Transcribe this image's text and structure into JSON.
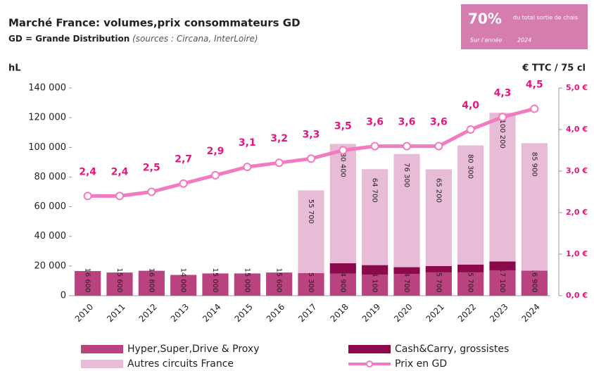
{
  "chart_data": {
    "type": "bar",
    "title": "Marché France: volumes,prix consommateurs GD",
    "subtitle": "GD = Grande Distribution",
    "source": "(sources : Circana, InterLoire)",
    "badge": {
      "value": "70%",
      "text": "du total sortie de chais",
      "period": "Sur l'année",
      "year": "2024"
    },
    "y_label": "hL",
    "y2_label": "€ TTC / 75 cl",
    "categories": [
      "2010",
      "2011",
      "2012",
      "2013",
      "2014",
      "2015",
      "2016",
      "2017",
      "2018",
      "2019",
      "2020",
      "2021",
      "2022",
      "2023",
      "2024"
    ],
    "series": [
      {
        "name": "Hyper,Super,Drive & Proxy",
        "color": "#b8437f",
        "values": [
          16600,
          15600,
          16800,
          14000,
          15000,
          15000,
          15600,
          15300,
          14900,
          14100,
          14700,
          15700,
          15700,
          17100,
          16900
        ],
        "value_labels": [
          "16 600",
          "15 600",
          "16 800",
          "14 000",
          "15 000",
          "15 000",
          "15 600",
          "15 300",
          "14 900",
          "14 100",
          "14 700",
          "15 700",
          "15 700",
          "17 100",
          "16 900"
        ]
      },
      {
        "name": "Cash&Carry, grossistes",
        "color": "#8c0a4b",
        "values": [
          0,
          0,
          0,
          0,
          0,
          0,
          0,
          0,
          7000,
          6500,
          4500,
          4300,
          5300,
          6000,
          0
        ]
      },
      {
        "name": "Autres circuits France",
        "color": "#e8bcd6",
        "values": [
          0,
          0,
          0,
          0,
          0,
          0,
          0,
          55700,
          80400,
          64700,
          76300,
          65200,
          80300,
          100200,
          85900
        ],
        "value_labels": [
          null,
          null,
          null,
          null,
          null,
          null,
          null,
          "55 700",
          "80 400",
          "64 700",
          "76 300",
          "65 200",
          "80 300",
          "100 200",
          "85 900"
        ]
      },
      {
        "name": "Prix en GD",
        "color": "#f27ac0",
        "type": "line",
        "axis": "y2",
        "values": [
          2.4,
          2.4,
          2.5,
          2.7,
          2.9,
          3.1,
          3.2,
          3.3,
          3.5,
          3.6,
          3.6,
          3.6,
          4.0,
          4.3,
          4.5
        ],
        "value_labels": [
          "2,4",
          "2,4",
          "2,5",
          "2,7",
          "2,9",
          "3,1",
          "3,2",
          "3,3",
          "3,5",
          "3,6",
          "3,6",
          "3,6",
          "4,0",
          "4,3",
          "4,5"
        ]
      }
    ],
    "ylim": [
      0,
      140000
    ],
    "yticks": [
      0,
      {
        "value": 20000,
        "label": "20 000"
      },
      {
        "value": 40000,
        "label": "40 000"
      },
      {
        "value": 60000,
        "label": "60 000"
      },
      {
        "value": 80000,
        "label": "80 000"
      },
      {
        "value": 100000,
        "label": "100 000"
      },
      {
        "value": 120000,
        "label": "120 000"
      },
      {
        "value": 140000,
        "label": "140 000"
      }
    ],
    "y2lim": [
      0,
      5
    ],
    "y2ticks": [
      {
        "value": 0,
        "label": "0,0 €"
      },
      {
        "value": 1,
        "label": "1,0 €"
      },
      {
        "value": 2,
        "label": "2,0 €"
      },
      {
        "value": 3,
        "label": "3,0 €"
      },
      {
        "value": 4,
        "label": "4,0 €"
      },
      {
        "value": 5,
        "label": "5,0 €"
      }
    ],
    "stacked": true
  }
}
